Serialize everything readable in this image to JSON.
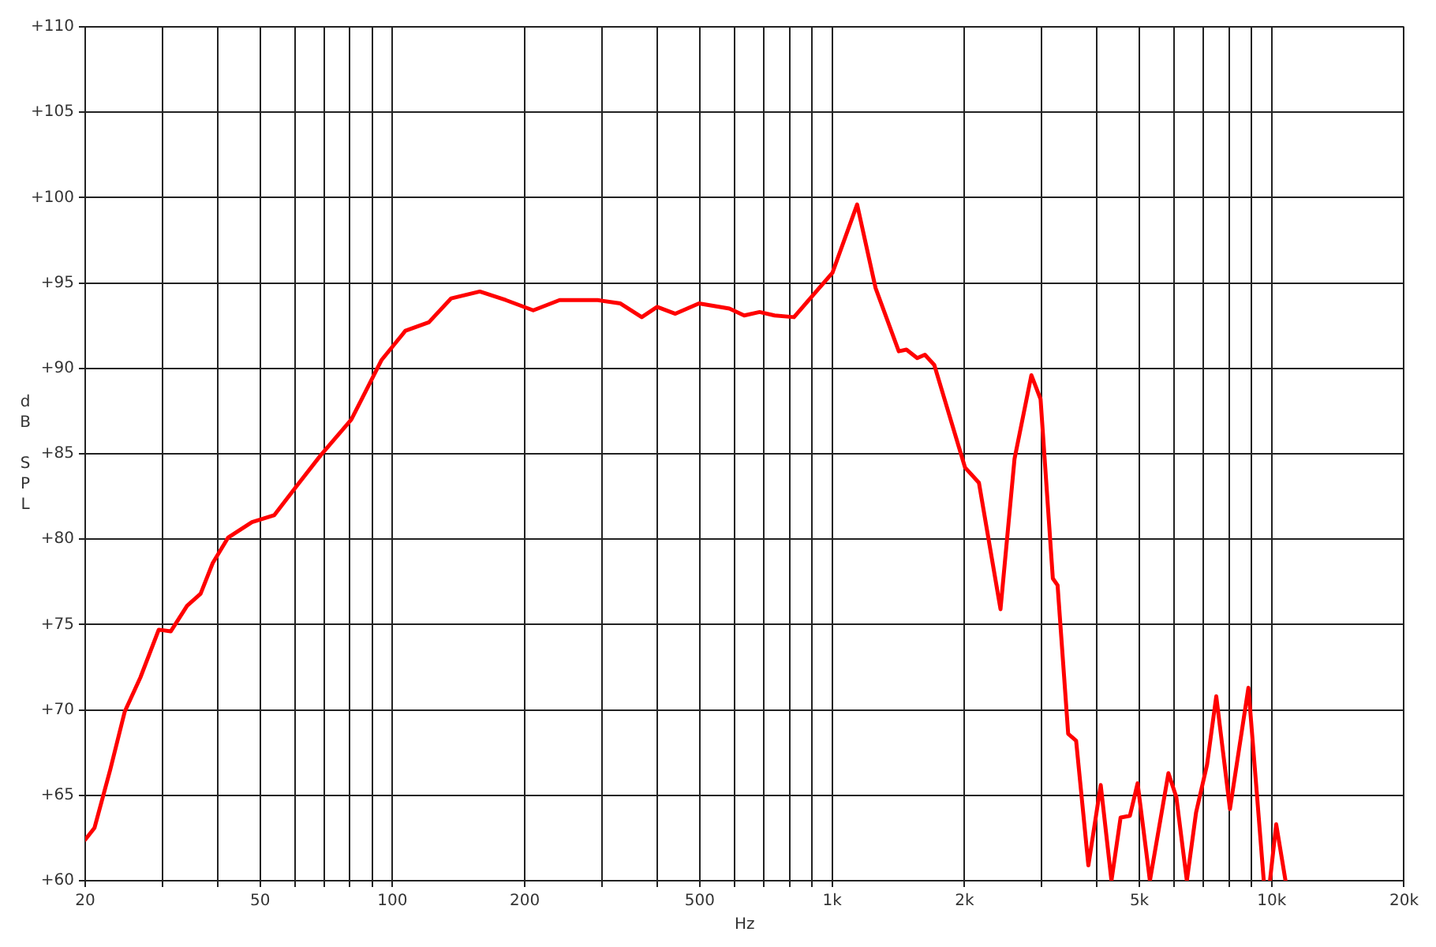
{
  "chart_data": {
    "type": "line",
    "xlabel": "Hz",
    "ylabel": "dB SPL",
    "log": "x",
    "grid": true,
    "legend": false,
    "marker": "none",
    "line_style": "solid",
    "xlim": [
      20,
      20000
    ],
    "xticks": [
      20,
      {
        "value": 30,
        "label": null
      },
      {
        "value": 40,
        "label": null
      },
      50,
      {
        "value": 60,
        "label": null
      },
      {
        "value": 70,
        "label": null
      },
      {
        "value": 80,
        "label": null
      },
      {
        "value": 90,
        "label": null
      },
      100,
      200,
      {
        "value": 300,
        "label": null
      },
      {
        "value": 400,
        "label": null
      },
      500,
      {
        "value": 600,
        "label": null
      },
      {
        "value": 700,
        "label": null
      },
      {
        "value": 800,
        "label": null
      },
      {
        "value": 900,
        "label": null
      },
      {
        "value": 1000,
        "label": "1k"
      },
      {
        "value": 2000,
        "label": "2k"
      },
      {
        "value": 3000,
        "label": null
      },
      {
        "value": 4000,
        "label": null
      },
      {
        "value": 5000,
        "label": "5k"
      },
      {
        "value": 6000,
        "label": null
      },
      {
        "value": 7000,
        "label": null
      },
      {
        "value": 8000,
        "label": null
      },
      {
        "value": 9000,
        "label": null
      },
      {
        "value": 10000,
        "label": "10k"
      },
      {
        "value": 20000,
        "label": "20k"
      }
    ],
    "ylim": [
      60,
      110
    ],
    "yticks": [
      {
        "value": 60,
        "label": "+60"
      },
      {
        "value": 65,
        "label": "+65"
      },
      {
        "value": 70,
        "label": "+70"
      },
      {
        "value": 75,
        "label": "+75"
      },
      {
        "value": 80,
        "label": "+80"
      },
      {
        "value": 85,
        "label": "+85"
      },
      {
        "value": 90,
        "label": "+90"
      },
      {
        "value": 95,
        "label": "+95"
      },
      {
        "value": 100,
        "label": "+100"
      },
      {
        "value": 105,
        "label": "+105"
      },
      {
        "value": 110,
        "label": "+110"
      }
    ],
    "series": [
      {
        "color": "#ff0000",
        "x": [
          20,
          21,
          22.8,
          24.6,
          26.7,
          29.4,
          31.3,
          34.1,
          36.6,
          39,
          42.3,
          47.9,
          53.8,
          60.9,
          68.6,
          80.6,
          94.5,
          107,
          121,
          136,
          158,
          181,
          209,
          240,
          293,
          330,
          369,
          400,
          440,
          498,
          584,
          631,
          684,
          740,
          819,
          1002,
          1140,
          1256,
          1418,
          1476,
          1562,
          1626,
          1708,
          1958,
          2006,
          2158,
          2416,
          2600,
          2840,
          2980,
          3178,
          3258,
          3444,
          3590,
          3828,
          4084,
          4320,
          4532,
          4758,
          4954,
          5284,
          5822,
          6068,
          6412,
          6730,
          7128,
          7480,
          8036,
          8852,
          9594,
          9750,
          9910,
          10240,
          10750
        ],
        "values": [
          62.4,
          63.1,
          66.5,
          69.9,
          71.9,
          74.7,
          74.6,
          76.1,
          76.8,
          78.6,
          80.1,
          81,
          81.4,
          83.2,
          84.9,
          87,
          90.5,
          92.2,
          92.7,
          94.1,
          94.5,
          94,
          93.4,
          94,
          94,
          93.8,
          93,
          93.6,
          93.2,
          93.8,
          93.5,
          93.1,
          93.3,
          93.1,
          93,
          95.6,
          99.6,
          94.7,
          91,
          91.1,
          90.6,
          90.8,
          90.2,
          85.1,
          84.2,
          83.3,
          75.9,
          84.7,
          89.6,
          88.2,
          77.7,
          77.3,
          68.6,
          68.2,
          60.9,
          65.6,
          60,
          63.7,
          63.8,
          65.7,
          60,
          66.3,
          64.9,
          60,
          64,
          66.8,
          70.8,
          64.2,
          71.3,
          60,
          null,
          60,
          63.3,
          60
        ]
      }
    ]
  }
}
